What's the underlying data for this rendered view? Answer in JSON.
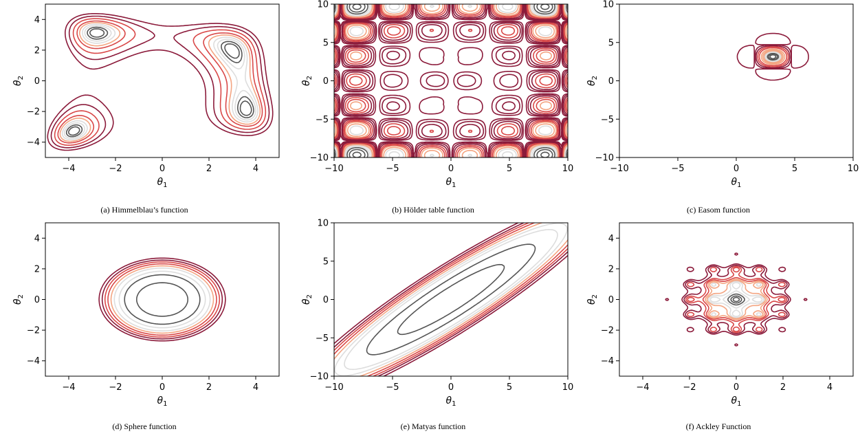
{
  "chart_data": [
    {
      "id": "a",
      "type": "contour",
      "caption": "(a) Himmelblau’s function",
      "xlabel": "θ",
      "xlabel_sub": "1",
      "ylabel": "θ",
      "ylabel_sub": "2",
      "xlim": [
        -5,
        5
      ],
      "ylim": [
        -5,
        5
      ],
      "xticks": [
        -4,
        -2,
        0,
        2,
        4
      ],
      "yticks": [
        -4,
        -2,
        0,
        2,
        4
      ],
      "minima": [
        [
          3.0,
          2.0
        ],
        [
          -2.805,
          3.131
        ],
        [
          -3.779,
          -3.283
        ],
        [
          3.584,
          -1.848
        ]
      ]
    },
    {
      "id": "b",
      "type": "contour",
      "caption": "(b) Hölder table function",
      "xlabel": "θ",
      "xlabel_sub": "1",
      "ylabel": "θ",
      "ylabel_sub": "2",
      "xlim": [
        -10,
        10
      ],
      "ylim": [
        -10,
        10
      ],
      "xticks": [
        -10,
        -5,
        0,
        5,
        10
      ],
      "yticks": [
        -10,
        -5,
        0,
        5,
        10
      ],
      "minima": [
        [
          8.055,
          9.665
        ],
        [
          -8.055,
          9.665
        ],
        [
          8.055,
          -9.665
        ],
        [
          -8.055,
          -9.665
        ]
      ]
    },
    {
      "id": "c",
      "type": "contour",
      "caption": "(c) Easom function",
      "xlabel": "θ",
      "xlabel_sub": "1",
      "ylabel": "θ",
      "ylabel_sub": "2",
      "xlim": [
        -10,
        10
      ],
      "ylim": [
        -10,
        10
      ],
      "xticks": [
        -10,
        -5,
        0,
        5,
        10
      ],
      "yticks": [
        -10,
        -5,
        0,
        5,
        10
      ],
      "minima": [
        [
          3.1416,
          3.1416
        ]
      ]
    },
    {
      "id": "d",
      "type": "contour",
      "caption": "(d) Sphere function",
      "xlabel": "θ",
      "xlabel_sub": "1",
      "ylabel": "θ",
      "ylabel_sub": "2",
      "xlim": [
        -5,
        5
      ],
      "ylim": [
        -5,
        5
      ],
      "xticks": [
        -4,
        -2,
        0,
        2,
        4
      ],
      "yticks": [
        -4,
        -2,
        0,
        2,
        4
      ],
      "minima": [
        [
          0,
          0
        ]
      ]
    },
    {
      "id": "e",
      "type": "contour",
      "caption": "(e) Matyas function",
      "xlabel": "θ",
      "xlabel_sub": "1",
      "ylabel": "θ",
      "ylabel_sub": "2",
      "xlim": [
        -10,
        10
      ],
      "ylim": [
        -10,
        10
      ],
      "xticks": [
        -10,
        -5,
        0,
        5,
        10
      ],
      "yticks": [
        -10,
        -5,
        0,
        5,
        10
      ],
      "minima": [
        [
          0,
          0
        ]
      ]
    },
    {
      "id": "f",
      "type": "contour",
      "caption": "(f) Ackley Function",
      "xlabel": "θ",
      "xlabel_sub": "1",
      "ylabel": "θ",
      "ylabel_sub": "2",
      "xlim": [
        -5,
        5
      ],
      "ylim": [
        -5,
        5
      ],
      "xticks": [
        -4,
        -2,
        0,
        2,
        4
      ],
      "yticks": [
        -4,
        -2,
        0,
        2,
        4
      ],
      "minima": [
        [
          0,
          0
        ]
      ]
    }
  ],
  "colors": {
    "outer": "#8b1a3a",
    "mid": "#d94848",
    "light": "#f4a582",
    "pale": "#dddddd",
    "inner": "#555555"
  }
}
